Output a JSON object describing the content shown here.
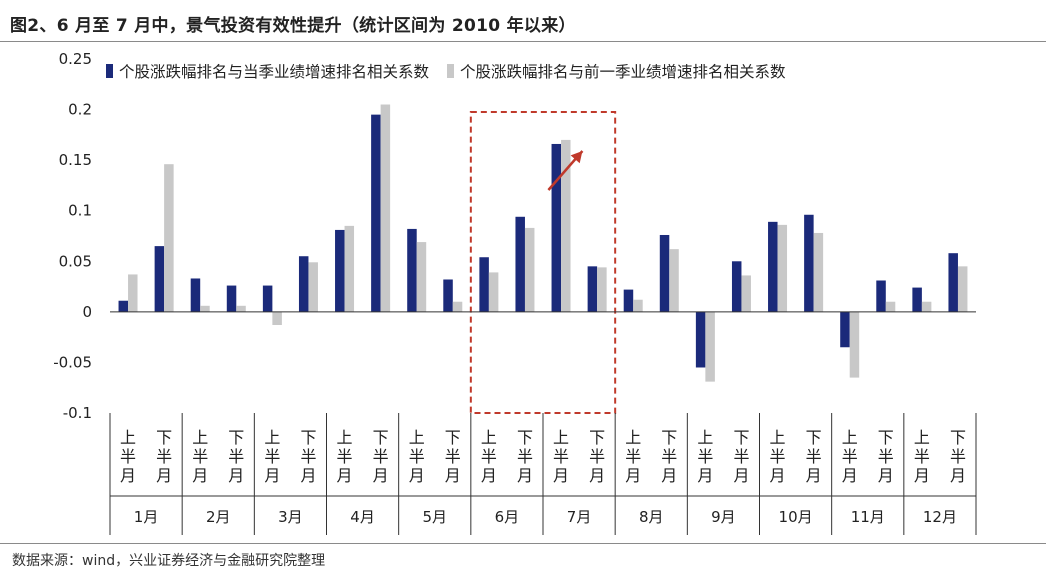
{
  "title": "图2、6 月至 7 月中，景气投资有效性提升（统计区间为 2010 年以来）",
  "source": "数据来源：wind，兴业证券经济与金融研究院整理",
  "colors": {
    "series_current": "#1b2a7a",
    "series_prev": "#c8c8c8",
    "highlight": "#c0392b",
    "axis": "#333333"
  },
  "chart_data": {
    "type": "bar",
    "ylim": [
      -0.1,
      0.25
    ],
    "yticks": [
      "0.25",
      "0.2",
      "0.15",
      "0.1",
      "0.05",
      "0",
      "-0.05",
      "-0.1"
    ],
    "ytick_values": [
      0.25,
      0.2,
      0.15,
      0.1,
      0.05,
      0,
      -0.05,
      -0.1
    ],
    "half_labels": [
      "上半月",
      "下半月"
    ],
    "months": [
      "1月",
      "2月",
      "3月",
      "4月",
      "5月",
      "6月",
      "7月",
      "8月",
      "9月",
      "10月",
      "11月",
      "12月"
    ],
    "series": [
      {
        "name": "个股涨跌幅排名与当季业绩增速排名相关系数",
        "values": [
          0.011,
          0.065,
          0.033,
          0.026,
          0.026,
          0.055,
          0.081,
          0.195,
          0.082,
          0.032,
          0.054,
          0.094,
          0.166,
          0.045,
          0.022,
          0.076,
          -0.055,
          0.05,
          0.089,
          0.096,
          -0.035,
          0.031,
          0.024,
          0.058
        ]
      },
      {
        "name": "个股涨跌幅排名与前一季业绩增速排名相关系数",
        "values": [
          0.037,
          0.146,
          0.006,
          0.006,
          -0.013,
          0.049,
          0.085,
          0.205,
          0.069,
          0.01,
          0.039,
          0.083,
          0.17,
          0.044,
          0.012,
          0.062,
          -0.069,
          0.036,
          0.086,
          0.078,
          -0.065,
          0.01,
          0.01,
          0.045
        ]
      }
    ],
    "highlight": {
      "months": [
        "6月",
        "7月"
      ],
      "style": "dashed box with upward arrow"
    },
    "legend_position": "top-left",
    "grid": false
  }
}
